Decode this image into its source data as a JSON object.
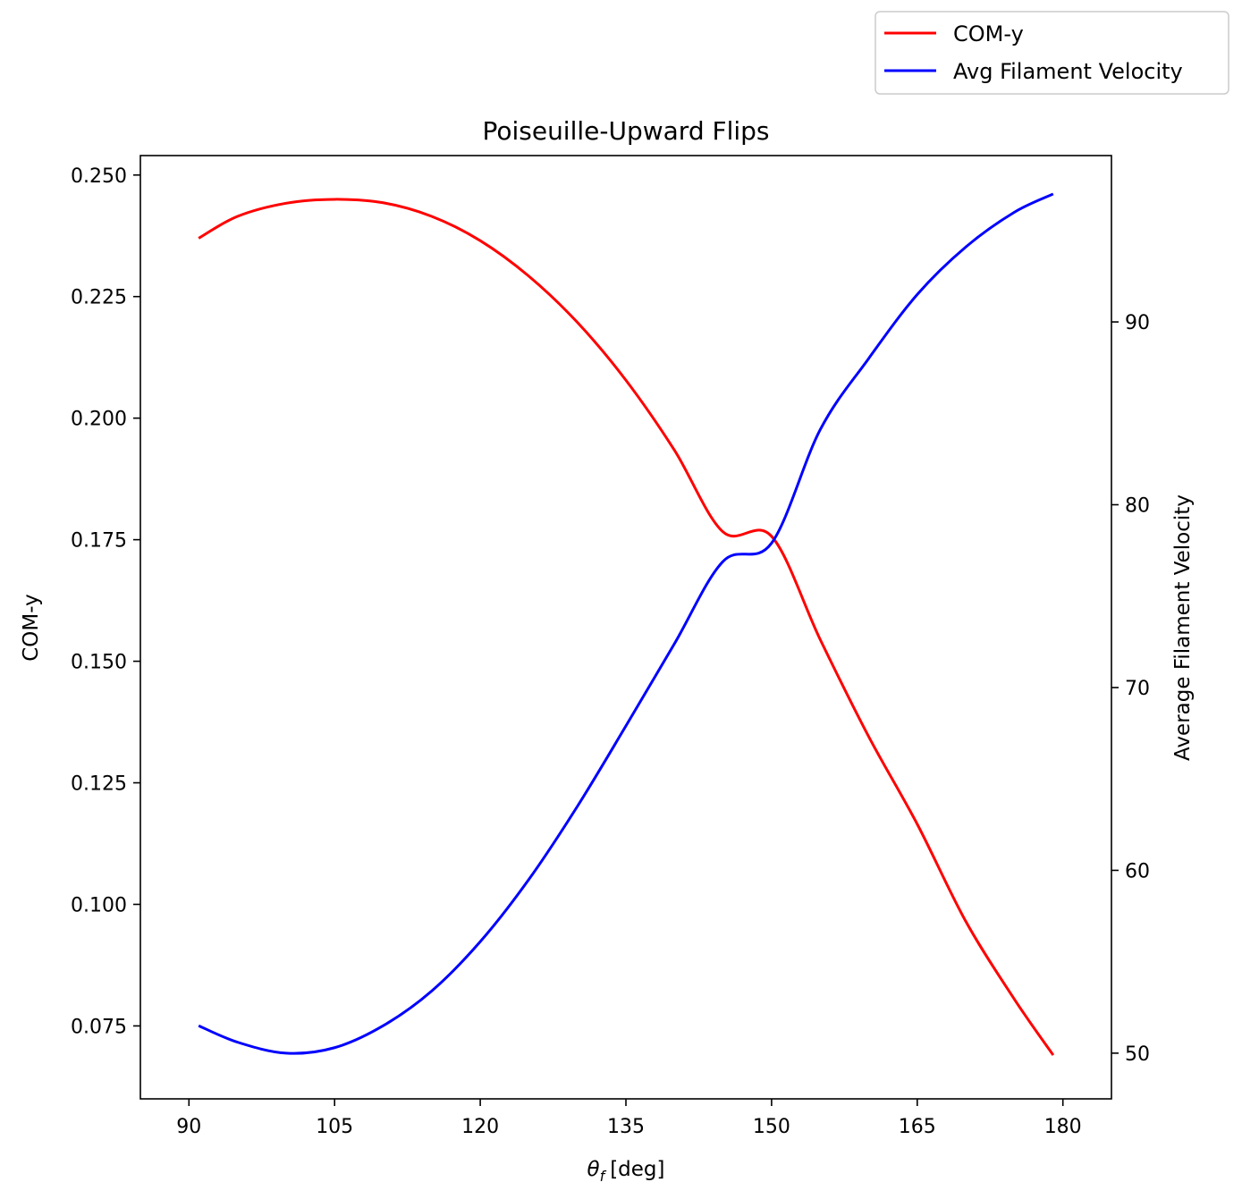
{
  "chart_data": {
    "type": "line",
    "title": "Poiseuille-Upward Flips",
    "xlabel_symbol": "θ",
    "xlabel_subscript": "f",
    "xlabel_unit": "[deg]",
    "ylabel_left": "COM-y",
    "ylabel_right": "Average Filament Velocity",
    "xlim": [
      85,
      185
    ],
    "ylim_left": [
      0.06,
      0.254
    ],
    "ylim_right": [
      47.5,
      99.1
    ],
    "x_ticks": [
      90,
      105,
      120,
      135,
      150,
      165,
      180
    ],
    "x_tick_labels": [
      "90",
      "105",
      "120",
      "135",
      "150",
      "165",
      "180"
    ],
    "y_left_ticks": [
      0.075,
      0.1,
      0.125,
      0.15,
      0.175,
      0.2,
      0.225,
      0.25
    ],
    "y_left_tick_labels": [
      "0.075",
      "0.100",
      "0.125",
      "0.150",
      "0.175",
      "0.200",
      "0.225",
      "0.250"
    ],
    "y_right_ticks": [
      50,
      60,
      70,
      80,
      90
    ],
    "y_right_tick_labels": [
      "50",
      "60",
      "70",
      "80",
      "90"
    ],
    "grid": false,
    "legend_position": "upper-right-outside",
    "series": [
      {
        "name": "COM-y",
        "axis": "left",
        "color": "#ff0000",
        "x": [
          91,
          95,
          100,
          105,
          110,
          115,
          120,
          125,
          130,
          135,
          140,
          145,
          150,
          155,
          160,
          165,
          170,
          175,
          179
        ],
        "y": [
          0.237,
          0.2415,
          0.2442,
          0.245,
          0.2443,
          0.2415,
          0.2365,
          0.2292,
          0.2197,
          0.2078,
          0.1934,
          0.1766,
          0.1757,
          0.1545,
          0.1345,
          0.1165,
          0.0965,
          0.0805,
          0.069
        ]
      },
      {
        "name": "Avg Filament Velocity",
        "axis": "right",
        "color": "#0000ff",
        "x": [
          91,
          95,
          100,
          105,
          110,
          115,
          120,
          125,
          130,
          135,
          140,
          145,
          150,
          155,
          160,
          165,
          170,
          175,
          179
        ],
        "y": [
          51.5,
          50.6,
          50.0,
          50.3,
          51.5,
          53.4,
          56.1,
          59.5,
          63.5,
          67.9,
          72.4,
          76.9,
          77.9,
          84.1,
          88.0,
          91.5,
          94.1,
          96.0,
          97.0
        ]
      }
    ]
  }
}
